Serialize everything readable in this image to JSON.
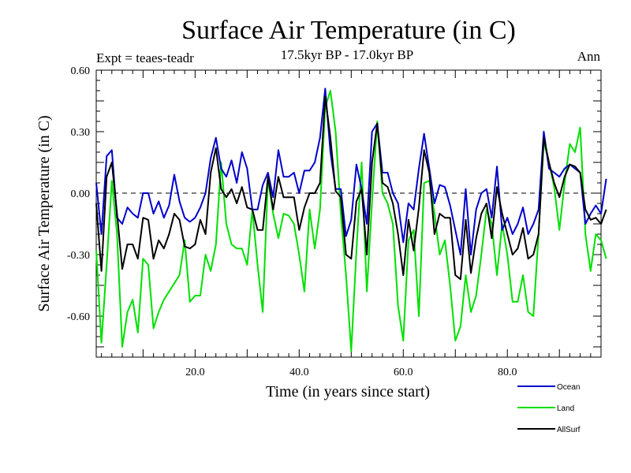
{
  "chart_data": {
    "type": "line",
    "title": "Surface Air Temperature (in C)",
    "subtitle": "17.5kyr BP - 17.0kyr BP",
    "left_note": "Expt = teaes-teadr",
    "right_note": "Ann",
    "xlabel": "Time (in years since start)",
    "ylabel": "Surface Air Temperature (in C)",
    "xlim": [
      1,
      98
    ],
    "ylim": [
      -0.8,
      0.6
    ],
    "xticks": [
      20,
      40,
      60,
      80
    ],
    "xtick_labels": [
      "20.0",
      "40.0",
      "60.0",
      "80.0"
    ],
    "yticks": [
      0.6,
      0.3,
      0.0,
      -0.3,
      -0.6
    ],
    "ytick_labels": [
      "0.60",
      "0.30",
      "0.00",
      "-0.30",
      "-0.60"
    ],
    "zero_line": true,
    "x_start": 1,
    "series": [
      {
        "name": "Ocean",
        "color": "#0000cc",
        "values": [
          0.05,
          -0.2,
          0.18,
          0.21,
          -0.12,
          -0.15,
          -0.07,
          -0.1,
          -0.12,
          0.0,
          0.0,
          -0.1,
          -0.04,
          -0.12,
          -0.06,
          0.09,
          -0.04,
          -0.12,
          -0.14,
          -0.12,
          -0.07,
          0.0,
          0.17,
          0.27,
          0.12,
          0.08,
          0.16,
          0.05,
          0.2,
          0.12,
          -0.08,
          -0.08,
          0.04,
          0.1,
          -0.02,
          0.21,
          0.08,
          0.08,
          0.1,
          0.0,
          0.11,
          0.11,
          0.15,
          0.27,
          0.51,
          0.2,
          0.02,
          0.02,
          -0.21,
          -0.13,
          0.14,
          0.02,
          -0.15,
          0.3,
          0.34,
          0.1,
          0.1,
          0.0,
          -0.05,
          -0.24,
          -0.05,
          -0.08,
          0.12,
          0.29,
          0.12,
          -0.05,
          0.04,
          0.03,
          -0.06,
          -0.18,
          -0.3,
          0.02,
          -0.3,
          -0.08,
          0.0,
          0.02,
          -0.12,
          0.13,
          -0.18,
          -0.12,
          -0.2,
          -0.15,
          -0.07,
          -0.2,
          -0.15,
          -0.08,
          0.3,
          0.12,
          0.1,
          0.08,
          0.12,
          0.14,
          0.12,
          0.1,
          -0.15,
          -0.1,
          -0.06,
          -0.1,
          0.07
        ]
      },
      {
        "name": "Land",
        "color": "#00e000",
        "values": [
          -0.28,
          -0.73,
          -0.35,
          0.06,
          -0.2,
          -0.75,
          -0.58,
          -0.52,
          -0.68,
          -0.32,
          -0.35,
          -0.66,
          -0.58,
          -0.52,
          -0.48,
          -0.44,
          -0.4,
          -0.23,
          -0.53,
          -0.5,
          -0.5,
          -0.3,
          -0.38,
          -0.25,
          0.15,
          -0.15,
          -0.25,
          -0.27,
          -0.27,
          -0.35,
          -0.08,
          -0.35,
          -0.58,
          0.07,
          -0.1,
          -0.22,
          -0.1,
          -0.11,
          -0.15,
          -0.3,
          -0.48,
          -0.08,
          -0.27,
          -0.08,
          0.42,
          0.5,
          0.3,
          -0.1,
          -0.4,
          -0.77,
          -0.28,
          0.15,
          -0.48,
          -0.04,
          0.35,
          0.0,
          -0.05,
          -0.15,
          -0.55,
          -0.72,
          -0.23,
          -0.18,
          -0.6,
          0.05,
          0.06,
          -0.1,
          -0.3,
          -0.23,
          -0.45,
          -0.72,
          -0.65,
          -0.4,
          -0.58,
          -0.5,
          -0.3,
          -0.08,
          -0.15,
          -0.4,
          -0.15,
          -0.3,
          -0.53,
          -0.53,
          -0.4,
          -0.58,
          -0.6,
          -0.2,
          0.25,
          0.15,
          0.03,
          -0.18,
          0.05,
          0.24,
          0.2,
          0.32,
          -0.2,
          -0.38,
          -0.2,
          -0.23,
          -0.32
        ]
      },
      {
        "name": "AllSurf",
        "color": "#000000",
        "values": [
          -0.05,
          -0.38,
          0.08,
          0.15,
          -0.1,
          -0.37,
          -0.25,
          -0.25,
          -0.32,
          -0.12,
          -0.13,
          -0.32,
          -0.23,
          -0.27,
          -0.2,
          -0.1,
          -0.13,
          -0.26,
          -0.27,
          -0.25,
          -0.13,
          -0.2,
          0.1,
          0.22,
          0.02,
          -0.02,
          0.02,
          -0.05,
          0.03,
          -0.07,
          -0.08,
          -0.18,
          -0.18,
          0.08,
          -0.08,
          0.08,
          -0.02,
          -0.02,
          -0.02,
          -0.18,
          -0.07,
          0.0,
          0.0,
          0.05,
          0.47,
          0.27,
          0.01,
          -0.02,
          -0.3,
          -0.32,
          -0.04,
          0.02,
          -0.3,
          0.15,
          0.34,
          0.05,
          0.03,
          -0.05,
          -0.2,
          -0.4,
          -0.13,
          -0.28,
          -0.07,
          0.21,
          0.1,
          -0.2,
          -0.1,
          -0.12,
          -0.12,
          -0.4,
          -0.42,
          -0.13,
          -0.39,
          -0.22,
          -0.1,
          -0.05,
          -0.22,
          0.03,
          -0.1,
          -0.2,
          -0.3,
          -0.27,
          -0.17,
          -0.32,
          -0.3,
          -0.2,
          0.27,
          0.15,
          0.05,
          -0.02,
          0.08,
          0.14,
          0.13,
          0.1,
          -0.08,
          -0.13,
          -0.12,
          -0.15,
          -0.08
        ]
      }
    ]
  }
}
